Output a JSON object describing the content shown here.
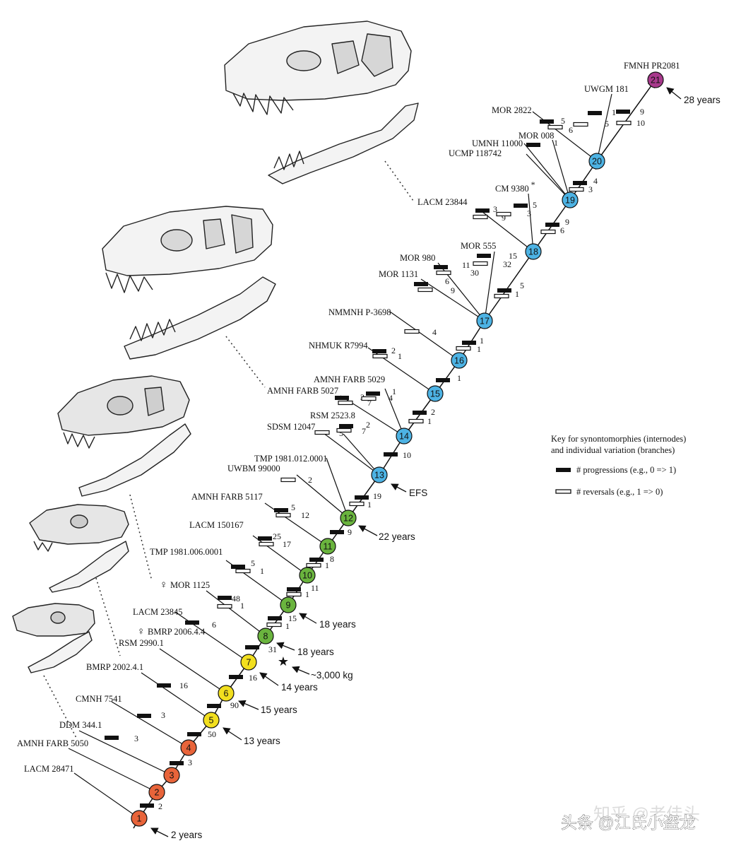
{
  "colors": {
    "orange": "#e8643a",
    "yellow": "#f2df1f",
    "green": "#6ab43e",
    "blue": "#4db3e4",
    "purple": "#a8398c",
    "line": "#111111"
  },
  "nodes": [
    {
      "id": "1",
      "color": "orange"
    },
    {
      "id": "2",
      "color": "orange"
    },
    {
      "id": "3",
      "color": "orange"
    },
    {
      "id": "4",
      "color": "orange"
    },
    {
      "id": "5",
      "color": "yellow"
    },
    {
      "id": "6",
      "color": "yellow"
    },
    {
      "id": "7",
      "color": "yellow"
    },
    {
      "id": "8",
      "color": "green"
    },
    {
      "id": "9",
      "color": "green"
    },
    {
      "id": "10",
      "color": "green"
    },
    {
      "id": "11",
      "color": "green"
    },
    {
      "id": "12",
      "color": "green"
    },
    {
      "id": "13",
      "color": "blue"
    },
    {
      "id": "14",
      "color": "blue"
    },
    {
      "id": "15",
      "color": "blue"
    },
    {
      "id": "16",
      "color": "blue"
    },
    {
      "id": "17",
      "color": "blue"
    },
    {
      "id": "18",
      "color": "blue"
    },
    {
      "id": "19",
      "color": "blue"
    },
    {
      "id": "20",
      "color": "blue"
    },
    {
      "id": "21",
      "color": "purple"
    }
  ],
  "specimens": [
    {
      "label": "LACM 28471",
      "node": "1"
    },
    {
      "label": "AMNH FARB 5050",
      "node": "2"
    },
    {
      "label": "DDM 344.1",
      "node": "3",
      "prog": "3"
    },
    {
      "label": "CMNH 7541",
      "node": "4",
      "prog": "3"
    },
    {
      "label": "BMRP 2002.4.1",
      "node": "5",
      "prog": "16"
    },
    {
      "label": "RSM 2990.1",
      "node": "6"
    },
    {
      "label": "BMRP 2006.4.4",
      "node": "6",
      "female": true
    },
    {
      "label": "LACM 23845",
      "node": "7",
      "prog": "6"
    },
    {
      "label": "MOR 1125",
      "node": "8",
      "female": true,
      "prog": "48",
      "rev": "1"
    },
    {
      "label": "TMP 1981.006.0001",
      "node": "9",
      "prog": "5",
      "rev": "1"
    },
    {
      "label": "LACM 150167",
      "node": "10",
      "prog": "25",
      "rev": "17"
    },
    {
      "label": "AMNH FARB 5117",
      "node": "11",
      "prog": "5",
      "rev": "12"
    },
    {
      "label": "UWBM 99000",
      "node": "12",
      "rev": "2"
    },
    {
      "label": "TMP 1981.012.0001",
      "node": "12"
    },
    {
      "label": "SDSM 12047",
      "node": "13",
      "rev": "5"
    },
    {
      "label": "RSM 2523.8",
      "node": "13",
      "prog": "2",
      "rev": "7"
    },
    {
      "label": "AMNH FARB 5027",
      "node": "14",
      "prog": "3",
      "rev": "7"
    },
    {
      "label": "AMNH FARB 5029",
      "node": "14",
      "prog": "1",
      "rev": "4"
    },
    {
      "label": "NHMUK R7994",
      "node": "15",
      "prog": "2",
      "rev": "1"
    },
    {
      "label": "NMMNH P-3698",
      "node": "16",
      "rev": "4"
    },
    {
      "label": "MOR 1131",
      "node": "17",
      "prog": "6",
      "rev": "9"
    },
    {
      "label": "MOR 980",
      "node": "17",
      "prog": "11",
      "rev": "30"
    },
    {
      "label": "MOR 555",
      "node": "17",
      "prog": "15",
      "rev": "32"
    },
    {
      "label": "LACM 23844",
      "node": "18",
      "prog": "3",
      "rev": "9"
    },
    {
      "label": "CM 9380",
      "node": "18",
      "prog": "5",
      "rev": "3"
    },
    {
      "label": "UCMP 118742",
      "node": "19"
    },
    {
      "label": "UMNH 11000",
      "node": "19"
    },
    {
      "label": "MOR 008",
      "node": "19",
      "prog": "1"
    },
    {
      "label": "MOR 2822",
      "node": "20",
      "prog": "5",
      "rev": "6"
    },
    {
      "label": "UWGM 181",
      "node": "20",
      "prog": "1",
      "rev": "5"
    },
    {
      "label": "FMNH PR2081",
      "node": "21"
    }
  ],
  "internodes": [
    {
      "from": "1",
      "to": "2",
      "prog": "2"
    },
    {
      "from": "2",
      "to": "3",
      "prog": "3"
    },
    {
      "from": "4",
      "to": "5",
      "prog": "50"
    },
    {
      "from": "5",
      "to": "6",
      "prog": "90"
    },
    {
      "from": "6",
      "to": "7",
      "prog": "16"
    },
    {
      "from": "7",
      "to": "8",
      "prog": "31"
    },
    {
      "from": "8",
      "to": "9",
      "prog": "15",
      "rev": "1"
    },
    {
      "from": "9",
      "to": "10",
      "prog": "11",
      "rev": "1"
    },
    {
      "from": "10",
      "to": "11",
      "prog": "8",
      "rev": "1"
    },
    {
      "from": "11",
      "to": "12",
      "prog": "9"
    },
    {
      "from": "12",
      "to": "13",
      "prog": "19",
      "rev": "1"
    },
    {
      "from": "13",
      "to": "14",
      "prog": "10"
    },
    {
      "from": "14",
      "to": "15",
      "prog": "2",
      "rev": "1"
    },
    {
      "from": "15",
      "to": "16",
      "prog": "1"
    },
    {
      "from": "16",
      "to": "17",
      "prog": "1",
      "rev": "1"
    },
    {
      "from": "17",
      "to": "18",
      "prog": "5",
      "rev": "1"
    },
    {
      "from": "18",
      "to": "19",
      "prog": "9",
      "rev": "6"
    },
    {
      "from": "19",
      "to": "20",
      "prog": "4",
      "rev": "3"
    },
    {
      "from": "20",
      "to": "21",
      "prog": "9",
      "rev": "10"
    }
  ],
  "annotations": [
    {
      "text": "2 years",
      "node": "1"
    },
    {
      "text": "13 years",
      "node": "5"
    },
    {
      "text": "15 years",
      "node": "6"
    },
    {
      "text": "14 years",
      "node": "7"
    },
    {
      "text": "~3,000 kg",
      "node": "8",
      "star": true
    },
    {
      "text": "18 years",
      "node": "8"
    },
    {
      "text": "18 years",
      "node": "9"
    },
    {
      "text": "22 years",
      "node": "12"
    },
    {
      "text": "EFS",
      "node": "13"
    },
    {
      "text": "28 years",
      "node": "21"
    }
  ],
  "asterisk": "*",
  "key": {
    "title_line1": "Key for synontomorphies (internodes)",
    "title_line2": "and individual variation (branches)",
    "progressions": "# progressions (e.g., 0 => 1)",
    "reversals": "# reversals (e.g., 1 => 0)"
  },
  "watermark": {
    "back": "知乎 @老佳头",
    "front": "头条 @江氏小盗龙"
  },
  "skulls": [
    {
      "name": "skull-adult-large"
    },
    {
      "name": "skull-subadult"
    },
    {
      "name": "skull-juvenile-large"
    },
    {
      "name": "skull-juvenile-small"
    },
    {
      "name": "skull-hatchling"
    }
  ]
}
